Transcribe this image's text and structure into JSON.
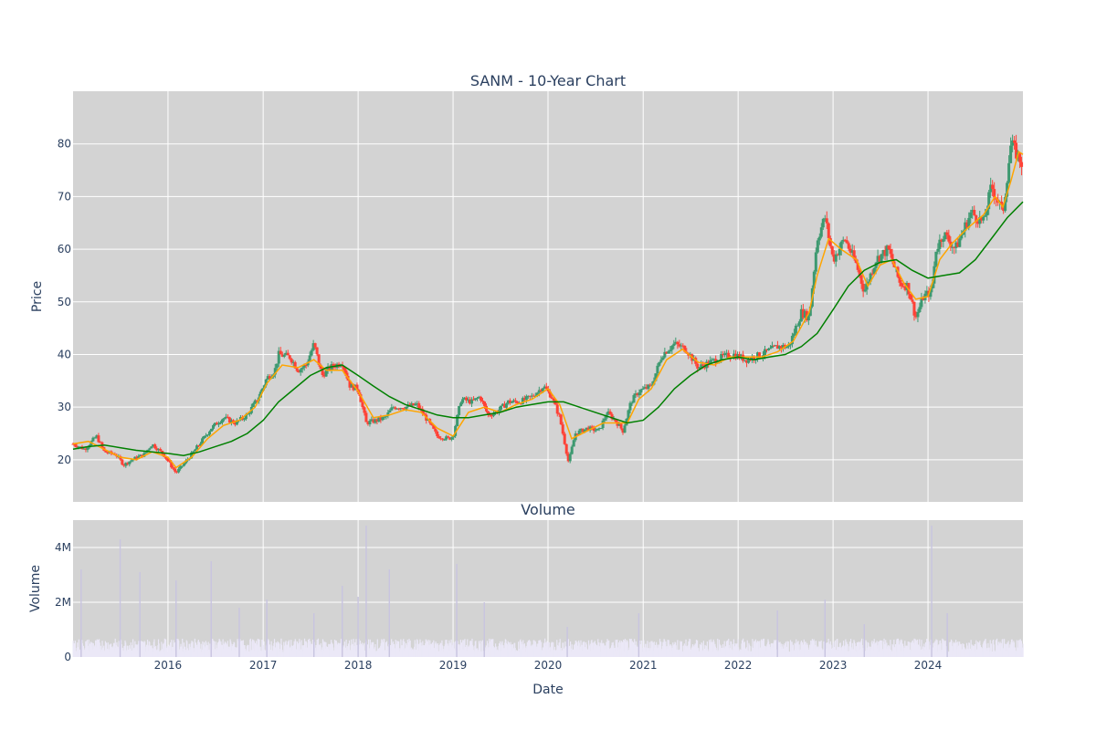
{
  "chart_data": [
    {
      "type": "candlestick",
      "title": "SANM - 10-Year Chart",
      "ylabel": "Price",
      "ylim": [
        12,
        90
      ],
      "yticks": [
        20,
        30,
        40,
        50,
        60,
        70,
        80
      ],
      "xlim": [
        "2015-01-01",
        "2024-12-31"
      ],
      "xticks": [
        "2016",
        "2017",
        "2018",
        "2019",
        "2020",
        "2021",
        "2022",
        "2023",
        "2024"
      ],
      "grid": true,
      "colors": {
        "up": "#3d9970",
        "down": "#ff4136",
        "ma_short": "#ffa500",
        "ma_long": "#008000",
        "plot_bg": "#d3d3d3",
        "grid": "#ffffff"
      },
      "price_path": [
        [
          "2015-01-01",
          23
        ],
        [
          "2015-02-15",
          22
        ],
        [
          "2015-04-01",
          24.5
        ],
        [
          "2015-05-01",
          21.5
        ],
        [
          "2015-06-15",
          21
        ],
        [
          "2015-07-15",
          19
        ],
        [
          "2015-08-15",
          20
        ],
        [
          "2015-10-01",
          21
        ],
        [
          "2015-11-01",
          23
        ],
        [
          "2015-12-15",
          21
        ],
        [
          "2016-02-01",
          17.5
        ],
        [
          "2016-03-15",
          20
        ],
        [
          "2016-05-01",
          23
        ],
        [
          "2016-06-15",
          26
        ],
        [
          "2016-08-01",
          28
        ],
        [
          "2016-09-15",
          27
        ],
        [
          "2016-11-01",
          28.5
        ],
        [
          "2016-12-15",
          32
        ],
        [
          "2017-01-15",
          35.5
        ],
        [
          "2017-02-15",
          37
        ],
        [
          "2017-03-01",
          40
        ],
        [
          "2017-04-15",
          39.5
        ],
        [
          "2017-05-15",
          37
        ],
        [
          "2017-06-15",
          38
        ],
        [
          "2017-07-15",
          42
        ],
        [
          "2017-08-15",
          36
        ],
        [
          "2017-09-15",
          37.5
        ],
        [
          "2017-11-01",
          38.5
        ],
        [
          "2017-12-01",
          34
        ],
        [
          "2018-01-01",
          33.5
        ],
        [
          "2018-02-01",
          27
        ],
        [
          "2018-03-15",
          27.5
        ],
        [
          "2018-04-15",
          28
        ],
        [
          "2018-05-15",
          30
        ],
        [
          "2018-07-01",
          30
        ],
        [
          "2018-08-15",
          30.5
        ],
        [
          "2018-10-01",
          27
        ],
        [
          "2018-11-01",
          24.5
        ],
        [
          "2018-12-15",
          24
        ],
        [
          "2019-01-01",
          24.5
        ],
        [
          "2019-02-01",
          31.5
        ],
        [
          "2019-03-15",
          31
        ],
        [
          "2019-04-15",
          32
        ],
        [
          "2019-05-15",
          28.5
        ],
        [
          "2019-06-15",
          29
        ],
        [
          "2019-08-01",
          31
        ],
        [
          "2019-09-15",
          31
        ],
        [
          "2019-11-01",
          32
        ],
        [
          "2019-12-15",
          34
        ],
        [
          "2020-01-15",
          32
        ],
        [
          "2020-02-15",
          28
        ],
        [
          "2020-03-20",
          19.5
        ],
        [
          "2020-04-15",
          25
        ],
        [
          "2020-06-01",
          26
        ],
        [
          "2020-07-15",
          25.5
        ],
        [
          "2020-08-15",
          29
        ],
        [
          "2020-09-15",
          27.5
        ],
        [
          "2020-10-15",
          25.5
        ],
        [
          "2020-11-15",
          31
        ],
        [
          "2020-12-15",
          33
        ],
        [
          "2021-02-01",
          34
        ],
        [
          "2021-03-15",
          40
        ],
        [
          "2021-05-01",
          42
        ],
        [
          "2021-06-15",
          41
        ],
        [
          "2021-08-01",
          37.5
        ],
        [
          "2021-09-15",
          38.5
        ],
        [
          "2021-11-01",
          39.5
        ],
        [
          "2021-12-15",
          40
        ],
        [
          "2022-02-01",
          39
        ],
        [
          "2022-04-01",
          40
        ],
        [
          "2022-06-01",
          41.5
        ],
        [
          "2022-07-15",
          41.5
        ],
        [
          "2022-09-01",
          48
        ],
        [
          "2022-10-01",
          47
        ],
        [
          "2022-11-01",
          62
        ],
        [
          "2022-12-01",
          66
        ],
        [
          "2023-01-01",
          58
        ],
        [
          "2023-02-15",
          62
        ],
        [
          "2023-04-01",
          57
        ],
        [
          "2023-05-01",
          52
        ],
        [
          "2023-06-15",
          58
        ],
        [
          "2023-08-01",
          60
        ],
        [
          "2023-09-15",
          53.5
        ],
        [
          "2023-10-15",
          53
        ],
        [
          "2023-11-15",
          47
        ],
        [
          "2023-12-15",
          51
        ],
        [
          "2024-01-15",
          52
        ],
        [
          "2024-02-01",
          60
        ],
        [
          "2024-03-01",
          63
        ],
        [
          "2024-04-15",
          60
        ],
        [
          "2024-06-15",
          67
        ],
        [
          "2024-08-01",
          65
        ],
        [
          "2024-09-01",
          72
        ],
        [
          "2024-10-15",
          67
        ],
        [
          "2024-11-15",
          80
        ],
        [
          "2024-12-31",
          76
        ]
      ],
      "ma_short_path": [
        [
          "2015-01-01",
          23
        ],
        [
          "2015-03-01",
          23.5
        ],
        [
          "2015-05-01",
          22
        ],
        [
          "2015-07-01",
          20.5
        ],
        [
          "2015-09-01",
          20
        ],
        [
          "2015-11-01",
          21.5
        ],
        [
          "2016-01-01",
          20.5
        ],
        [
          "2016-02-01",
          18.5
        ],
        [
          "2016-04-01",
          20.5
        ],
        [
          "2016-06-01",
          24
        ],
        [
          "2016-08-01",
          26.5
        ],
        [
          "2016-10-01",
          27.5
        ],
        [
          "2016-12-01",
          30
        ],
        [
          "2017-01-15",
          34.5
        ],
        [
          "2017-03-15",
          38
        ],
        [
          "2017-05-15",
          37.5
        ],
        [
          "2017-07-15",
          39
        ],
        [
          "2017-09-01",
          37
        ],
        [
          "2017-11-01",
          37
        ],
        [
          "2018-01-01",
          33
        ],
        [
          "2018-03-01",
          28
        ],
        [
          "2018-05-01",
          28.5
        ],
        [
          "2018-07-01",
          29.5
        ],
        [
          "2018-09-01",
          29
        ],
        [
          "2018-11-01",
          26
        ],
        [
          "2019-01-01",
          24.5
        ],
        [
          "2019-03-01",
          29
        ],
        [
          "2019-05-01",
          30
        ],
        [
          "2019-07-01",
          29
        ],
        [
          "2019-09-01",
          30.5
        ],
        [
          "2019-11-01",
          31.5
        ],
        [
          "2020-01-01",
          33.5
        ],
        [
          "2020-02-15",
          30.5
        ],
        [
          "2020-04-01",
          24
        ],
        [
          "2020-06-01",
          25.5
        ],
        [
          "2020-08-01",
          27
        ],
        [
          "2020-10-01",
          27
        ],
        [
          "2020-11-01",
          27
        ],
        [
          "2020-12-15",
          31.5
        ],
        [
          "2021-02-01",
          33.5
        ],
        [
          "2021-04-01",
          39
        ],
        [
          "2021-06-01",
          41
        ],
        [
          "2021-08-01",
          38.5
        ],
        [
          "2021-10-01",
          38
        ],
        [
          "2021-12-01",
          39.5
        ],
        [
          "2022-02-01",
          39.5
        ],
        [
          "2022-04-01",
          39.5
        ],
        [
          "2022-06-01",
          40.5
        ],
        [
          "2022-08-01",
          42.5
        ],
        [
          "2022-10-01",
          48
        ],
        [
          "2022-11-01",
          55
        ],
        [
          "2022-12-15",
          62
        ],
        [
          "2023-02-01",
          60
        ],
        [
          "2023-04-01",
          58
        ],
        [
          "2023-05-15",
          53
        ],
        [
          "2023-07-01",
          57
        ],
        [
          "2023-08-15",
          58
        ],
        [
          "2023-10-01",
          53.5
        ],
        [
          "2023-11-15",
          50.5
        ],
        [
          "2024-01-01",
          51
        ],
        [
          "2024-02-15",
          58
        ],
        [
          "2024-04-01",
          61
        ],
        [
          "2024-06-01",
          64
        ],
        [
          "2024-08-01",
          66.5
        ],
        [
          "2024-09-15",
          70
        ],
        [
          "2024-10-15",
          68
        ],
        [
          "2024-11-15",
          73
        ],
        [
          "2024-12-15",
          78.5
        ],
        [
          "2024-12-31",
          78
        ]
      ],
      "ma_long_path": [
        [
          "2015-01-01",
          22
        ],
        [
          "2015-03-01",
          22.5
        ],
        [
          "2015-05-01",
          22.8
        ],
        [
          "2015-07-01",
          22.3
        ],
        [
          "2015-09-01",
          21.8
        ],
        [
          "2015-11-01",
          21.5
        ],
        [
          "2016-01-01",
          21.2
        ],
        [
          "2016-03-01",
          20.8
        ],
        [
          "2016-05-01",
          21.5
        ],
        [
          "2016-07-01",
          22.5
        ],
        [
          "2016-09-01",
          23.5
        ],
        [
          "2016-11-01",
          25
        ],
        [
          "2017-01-01",
          27.5
        ],
        [
          "2017-03-01",
          31
        ],
        [
          "2017-05-01",
          33.5
        ],
        [
          "2017-07-01",
          36
        ],
        [
          "2017-09-01",
          37.5
        ],
        [
          "2017-11-01",
          38
        ],
        [
          "2018-01-01",
          36
        ],
        [
          "2018-03-01",
          34
        ],
        [
          "2018-05-01",
          32
        ],
        [
          "2018-07-01",
          30.5
        ],
        [
          "2018-09-01",
          29.5
        ],
        [
          "2018-11-01",
          28.5
        ],
        [
          "2019-01-01",
          28
        ],
        [
          "2019-03-01",
          28
        ],
        [
          "2019-05-01",
          28.5
        ],
        [
          "2019-07-01",
          29
        ],
        [
          "2019-09-01",
          30
        ],
        [
          "2019-11-01",
          30.5
        ],
        [
          "2020-01-01",
          31
        ],
        [
          "2020-03-01",
          31
        ],
        [
          "2020-05-01",
          30
        ],
        [
          "2020-07-01",
          29
        ],
        [
          "2020-09-01",
          28
        ],
        [
          "2020-11-01",
          27
        ],
        [
          "2021-01-01",
          27.5
        ],
        [
          "2021-03-01",
          30
        ],
        [
          "2021-05-01",
          33.5
        ],
        [
          "2021-07-01",
          36
        ],
        [
          "2021-09-01",
          38
        ],
        [
          "2021-11-01",
          39
        ],
        [
          "2022-01-01",
          39.5
        ],
        [
          "2022-03-01",
          39
        ],
        [
          "2022-05-01",
          39.5
        ],
        [
          "2022-07-01",
          40
        ],
        [
          "2022-09-01",
          41.5
        ],
        [
          "2022-11-01",
          44
        ],
        [
          "2023-01-01",
          48.5
        ],
        [
          "2023-03-01",
          53
        ],
        [
          "2023-05-01",
          56
        ],
        [
          "2023-07-01",
          57.5
        ],
        [
          "2023-09-01",
          58
        ],
        [
          "2023-11-01",
          56
        ],
        [
          "2024-01-01",
          54.5
        ],
        [
          "2024-03-01",
          55
        ],
        [
          "2024-05-01",
          55.5
        ],
        [
          "2024-07-01",
          58
        ],
        [
          "2024-09-01",
          62
        ],
        [
          "2024-11-01",
          66
        ],
        [
          "2024-12-31",
          69
        ]
      ]
    },
    {
      "type": "bar",
      "title": "Volume",
      "xlabel": "Date",
      "ylabel": "Volume",
      "ylim": [
        0,
        5000000
      ],
      "yticks": [
        0,
        2000000,
        4000000
      ],
      "ytick_labels": [
        "0",
        "2M",
        "4M"
      ],
      "colors": {
        "bar": "#ebe8f7",
        "spike": "#c8c4e0"
      },
      "baseline_volume": 450000,
      "spikes": [
        [
          "2015-02-01",
          3200000
        ],
        [
          "2015-07-01",
          4300000
        ],
        [
          "2015-09-15",
          3100000
        ],
        [
          "2016-02-01",
          2800000
        ],
        [
          "2016-06-15",
          3500000
        ],
        [
          "2016-10-01",
          1800000
        ],
        [
          "2017-01-15",
          2100000
        ],
        [
          "2017-07-15",
          1600000
        ],
        [
          "2017-11-01",
          2600000
        ],
        [
          "2018-01-01",
          2200000
        ],
        [
          "2018-02-01",
          4800000
        ],
        [
          "2018-05-01",
          3200000
        ],
        [
          "2019-01-15",
          3400000
        ],
        [
          "2019-05-01",
          2000000
        ],
        [
          "2020-03-15",
          1100000
        ],
        [
          "2020-12-15",
          1600000
        ],
        [
          "2022-06-01",
          1700000
        ],
        [
          "2022-12-01",
          2100000
        ],
        [
          "2023-05-01",
          1200000
        ],
        [
          "2024-01-15",
          4800000
        ],
        [
          "2024-03-15",
          1600000
        ]
      ]
    }
  ]
}
